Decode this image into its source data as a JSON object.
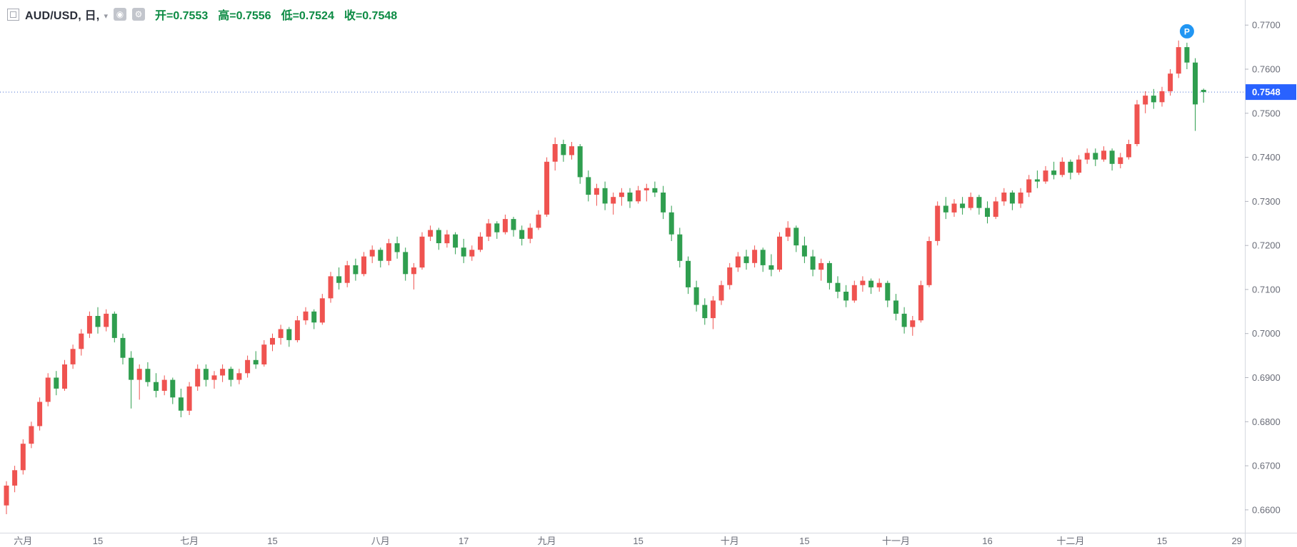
{
  "app": {
    "title": "AUD/USD daily candlestick chart"
  },
  "legend": {
    "symbol_title": "AUD/USD, 日,",
    "ohlc": {
      "open": "开=0.7553",
      "high": "高=0.7556",
      "low": "低=0.7524",
      "close": "收=0.7548"
    }
  },
  "colors": {
    "up": "#ef5350",
    "down": "#2f9e4f",
    "ohlc_text": "#0c8b44",
    "axis_line": "#d6d9e0",
    "axis_text": "#6a6d78",
    "price_tag_bg": "#2962ff",
    "price_tag_text": "#ffffff",
    "price_dotted_line": "#4a6fd4",
    "marker_bg": "#2196f3",
    "background": "#ffffff"
  },
  "chart_data": {
    "type": "candlestick",
    "symbol": "AUD/USD",
    "interval": "日",
    "ohlc_display": {
      "open": 0.7553,
      "high": 0.7556,
      "low": 0.7524,
      "close": 0.7548
    },
    "last_price": 0.7548,
    "last_price_label": "0.7548",
    "ylim": [
      0.6548,
      0.7757
    ],
    "y_ticks": [
      "0.7700",
      "0.7600",
      "0.7500",
      "0.7400",
      "0.7300",
      "0.7200",
      "0.7100",
      "0.7000",
      "0.6900",
      "0.6800",
      "0.6700",
      "0.6600"
    ],
    "x_ticks": [
      {
        "i": 2,
        "label": "六月"
      },
      {
        "i": 11,
        "label": "15"
      },
      {
        "i": 22,
        "label": "七月"
      },
      {
        "i": 32,
        "label": "15"
      },
      {
        "i": 45,
        "label": "八月"
      },
      {
        "i": 55,
        "label": "17"
      },
      {
        "i": 65,
        "label": "九月"
      },
      {
        "i": 76,
        "label": "15"
      },
      {
        "i": 87,
        "label": "十月"
      },
      {
        "i": 96,
        "label": "15"
      },
      {
        "i": 107,
        "label": "十一月"
      },
      {
        "i": 118,
        "label": "16"
      },
      {
        "i": 128,
        "label": "十二月"
      },
      {
        "i": 139,
        "label": "15"
      },
      {
        "i": 148,
        "label": "29"
      }
    ],
    "marker": {
      "i": 142,
      "label": "P"
    },
    "candles": [
      [
        0.661,
        0.6665,
        0.659,
        0.6655
      ],
      [
        0.6655,
        0.67,
        0.664,
        0.669
      ],
      [
        0.669,
        0.676,
        0.668,
        0.675
      ],
      [
        0.675,
        0.68,
        0.674,
        0.679
      ],
      [
        0.679,
        0.6855,
        0.678,
        0.6845
      ],
      [
        0.6845,
        0.691,
        0.6835,
        0.69
      ],
      [
        0.69,
        0.6915,
        0.686,
        0.6875
      ],
      [
        0.6875,
        0.694,
        0.687,
        0.693
      ],
      [
        0.693,
        0.6975,
        0.692,
        0.6965
      ],
      [
        0.6965,
        0.701,
        0.695,
        0.7
      ],
      [
        0.7,
        0.705,
        0.699,
        0.704
      ],
      [
        0.704,
        0.706,
        0.7,
        0.7015
      ],
      [
        0.7015,
        0.7055,
        0.7005,
        0.7045
      ],
      [
        0.7045,
        0.705,
        0.698,
        0.699
      ],
      [
        0.699,
        0.7,
        0.693,
        0.6945
      ],
      [
        0.6945,
        0.696,
        0.683,
        0.6895
      ],
      [
        0.6895,
        0.693,
        0.685,
        0.692
      ],
      [
        0.692,
        0.6935,
        0.688,
        0.689
      ],
      [
        0.689,
        0.691,
        0.6855,
        0.687
      ],
      [
        0.687,
        0.6905,
        0.686,
        0.6895
      ],
      [
        0.6895,
        0.69,
        0.684,
        0.6855
      ],
      [
        0.6855,
        0.6875,
        0.681,
        0.6825
      ],
      [
        0.6825,
        0.689,
        0.6815,
        0.688
      ],
      [
        0.688,
        0.693,
        0.687,
        0.692
      ],
      [
        0.692,
        0.693,
        0.688,
        0.6895
      ],
      [
        0.6895,
        0.6915,
        0.6875,
        0.6905
      ],
      [
        0.6905,
        0.693,
        0.689,
        0.692
      ],
      [
        0.692,
        0.6925,
        0.688,
        0.6895
      ],
      [
        0.6895,
        0.692,
        0.6885,
        0.691
      ],
      [
        0.691,
        0.695,
        0.69,
        0.694
      ],
      [
        0.694,
        0.696,
        0.692,
        0.693
      ],
      [
        0.693,
        0.6985,
        0.6925,
        0.6975
      ],
      [
        0.6975,
        0.7,
        0.696,
        0.699
      ],
      [
        0.699,
        0.702,
        0.6975,
        0.701
      ],
      [
        0.701,
        0.7015,
        0.697,
        0.6985
      ],
      [
        0.6985,
        0.704,
        0.698,
        0.703
      ],
      [
        0.703,
        0.706,
        0.702,
        0.705
      ],
      [
        0.705,
        0.7055,
        0.701,
        0.7025
      ],
      [
        0.7025,
        0.709,
        0.702,
        0.708
      ],
      [
        0.708,
        0.714,
        0.707,
        0.713
      ],
      [
        0.713,
        0.715,
        0.71,
        0.7115
      ],
      [
        0.7115,
        0.7165,
        0.7105,
        0.7155
      ],
      [
        0.7155,
        0.717,
        0.712,
        0.7135
      ],
      [
        0.7135,
        0.7185,
        0.713,
        0.7175
      ],
      [
        0.7175,
        0.72,
        0.716,
        0.719
      ],
      [
        0.719,
        0.7195,
        0.715,
        0.7165
      ],
      [
        0.7165,
        0.7215,
        0.7155,
        0.7205
      ],
      [
        0.7205,
        0.722,
        0.717,
        0.7185
      ],
      [
        0.7185,
        0.7195,
        0.712,
        0.7135
      ],
      [
        0.7135,
        0.716,
        0.71,
        0.715
      ],
      [
        0.715,
        0.723,
        0.7145,
        0.722
      ],
      [
        0.722,
        0.7245,
        0.721,
        0.7235
      ],
      [
        0.7235,
        0.724,
        0.719,
        0.7205
      ],
      [
        0.7205,
        0.7235,
        0.7195,
        0.7225
      ],
      [
        0.7225,
        0.723,
        0.718,
        0.7195
      ],
      [
        0.7195,
        0.7215,
        0.716,
        0.7175
      ],
      [
        0.7175,
        0.72,
        0.7165,
        0.719
      ],
      [
        0.719,
        0.723,
        0.7185,
        0.722
      ],
      [
        0.722,
        0.726,
        0.721,
        0.725
      ],
      [
        0.725,
        0.7255,
        0.7215,
        0.723
      ],
      [
        0.723,
        0.727,
        0.7225,
        0.726
      ],
      [
        0.726,
        0.7265,
        0.722,
        0.7235
      ],
      [
        0.7235,
        0.7245,
        0.72,
        0.7215
      ],
      [
        0.7215,
        0.725,
        0.7205,
        0.724
      ],
      [
        0.724,
        0.728,
        0.7235,
        0.727
      ],
      [
        0.727,
        0.74,
        0.7265,
        0.739
      ],
      [
        0.739,
        0.7445,
        0.737,
        0.743
      ],
      [
        0.743,
        0.744,
        0.739,
        0.7405
      ],
      [
        0.7405,
        0.7435,
        0.7395,
        0.7425
      ],
      [
        0.7425,
        0.743,
        0.734,
        0.7355
      ],
      [
        0.7355,
        0.737,
        0.73,
        0.7315
      ],
      [
        0.7315,
        0.734,
        0.729,
        0.733
      ],
      [
        0.733,
        0.7345,
        0.728,
        0.7295
      ],
      [
        0.7295,
        0.732,
        0.727,
        0.731
      ],
      [
        0.731,
        0.733,
        0.729,
        0.732
      ],
      [
        0.732,
        0.733,
        0.7285,
        0.73
      ],
      [
        0.73,
        0.7335,
        0.7295,
        0.7325
      ],
      [
        0.7325,
        0.734,
        0.73,
        0.733
      ],
      [
        0.733,
        0.7345,
        0.731,
        0.732
      ],
      [
        0.732,
        0.7335,
        0.726,
        0.7275
      ],
      [
        0.7275,
        0.729,
        0.721,
        0.7225
      ],
      [
        0.7225,
        0.724,
        0.715,
        0.7165
      ],
      [
        0.7165,
        0.7175,
        0.709,
        0.7105
      ],
      [
        0.7105,
        0.712,
        0.705,
        0.7065
      ],
      [
        0.7065,
        0.708,
        0.702,
        0.7035
      ],
      [
        0.7035,
        0.7085,
        0.701,
        0.7075
      ],
      [
        0.7075,
        0.712,
        0.7065,
        0.711
      ],
      [
        0.711,
        0.716,
        0.71,
        0.715
      ],
      [
        0.715,
        0.7185,
        0.714,
        0.7175
      ],
      [
        0.7175,
        0.719,
        0.7145,
        0.716
      ],
      [
        0.716,
        0.72,
        0.715,
        0.719
      ],
      [
        0.719,
        0.7195,
        0.714,
        0.7155
      ],
      [
        0.7155,
        0.718,
        0.713,
        0.7145
      ],
      [
        0.7145,
        0.723,
        0.714,
        0.722
      ],
      [
        0.722,
        0.7255,
        0.721,
        0.724
      ],
      [
        0.724,
        0.7245,
        0.7185,
        0.72
      ],
      [
        0.72,
        0.722,
        0.716,
        0.7175
      ],
      [
        0.7175,
        0.719,
        0.713,
        0.7145
      ],
      [
        0.7145,
        0.717,
        0.712,
        0.716
      ],
      [
        0.716,
        0.7165,
        0.71,
        0.7115
      ],
      [
        0.7115,
        0.713,
        0.708,
        0.7095
      ],
      [
        0.7095,
        0.711,
        0.706,
        0.7075
      ],
      [
        0.7075,
        0.712,
        0.707,
        0.711
      ],
      [
        0.711,
        0.713,
        0.7095,
        0.712
      ],
      [
        0.712,
        0.7125,
        0.709,
        0.7105
      ],
      [
        0.7105,
        0.7125,
        0.7095,
        0.7115
      ],
      [
        0.7115,
        0.712,
        0.706,
        0.7075
      ],
      [
        0.7075,
        0.709,
        0.703,
        0.7045
      ],
      [
        0.7045,
        0.706,
        0.7,
        0.7015
      ],
      [
        0.7015,
        0.704,
        0.6995,
        0.703
      ],
      [
        0.703,
        0.712,
        0.7025,
        0.711
      ],
      [
        0.711,
        0.722,
        0.7105,
        0.721
      ],
      [
        0.721,
        0.73,
        0.72,
        0.729
      ],
      [
        0.729,
        0.731,
        0.726,
        0.7275
      ],
      [
        0.7275,
        0.7305,
        0.7265,
        0.7295
      ],
      [
        0.7295,
        0.731,
        0.727,
        0.7285
      ],
      [
        0.7285,
        0.732,
        0.728,
        0.731
      ],
      [
        0.731,
        0.7315,
        0.727,
        0.7285
      ],
      [
        0.7285,
        0.73,
        0.725,
        0.7265
      ],
      [
        0.7265,
        0.731,
        0.726,
        0.73
      ],
      [
        0.73,
        0.733,
        0.729,
        0.732
      ],
      [
        0.732,
        0.7325,
        0.728,
        0.7295
      ],
      [
        0.7295,
        0.733,
        0.7285,
        0.732
      ],
      [
        0.732,
        0.736,
        0.731,
        0.735
      ],
      [
        0.735,
        0.737,
        0.733,
        0.7345
      ],
      [
        0.7345,
        0.738,
        0.734,
        0.737
      ],
      [
        0.737,
        0.739,
        0.735,
        0.736
      ],
      [
        0.736,
        0.74,
        0.7355,
        0.739
      ],
      [
        0.739,
        0.7395,
        0.735,
        0.7365
      ],
      [
        0.7365,
        0.7405,
        0.736,
        0.7395
      ],
      [
        0.7395,
        0.742,
        0.7385,
        0.741
      ],
      [
        0.741,
        0.742,
        0.738,
        0.7395
      ],
      [
        0.7395,
        0.7425,
        0.739,
        0.7415
      ],
      [
        0.7415,
        0.742,
        0.737,
        0.7385
      ],
      [
        0.7385,
        0.741,
        0.7375,
        0.74
      ],
      [
        0.74,
        0.744,
        0.7395,
        0.743
      ],
      [
        0.743,
        0.753,
        0.7425,
        0.752
      ],
      [
        0.752,
        0.755,
        0.75,
        0.754
      ],
      [
        0.754,
        0.7555,
        0.751,
        0.7525
      ],
      [
        0.7525,
        0.756,
        0.7515,
        0.755
      ],
      [
        0.755,
        0.76,
        0.754,
        0.759
      ],
      [
        0.759,
        0.7665,
        0.758,
        0.765
      ],
      [
        0.765,
        0.766,
        0.76,
        0.7615
      ],
      [
        0.7615,
        0.7625,
        0.746,
        0.752
      ],
      [
        0.7553,
        0.7556,
        0.7524,
        0.7548
      ]
    ]
  }
}
